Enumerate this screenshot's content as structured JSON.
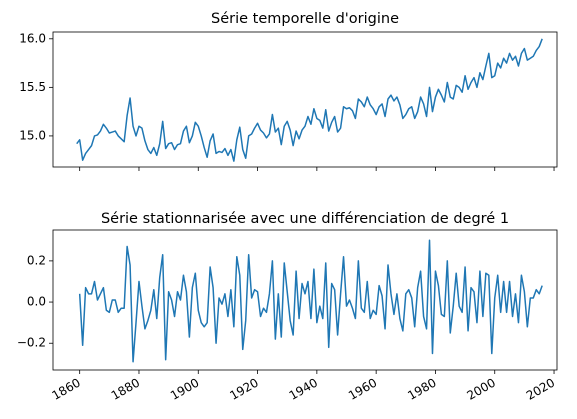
{
  "chart_data": [
    {
      "type": "line",
      "title": "Série temporelle d'origine",
      "x": [
        1859,
        1860,
        1861,
        1862,
        1863,
        1864,
        1865,
        1866,
        1867,
        1868,
        1869,
        1870,
        1871,
        1872,
        1873,
        1874,
        1875,
        1876,
        1877,
        1878,
        1879,
        1880,
        1881,
        1882,
        1883,
        1884,
        1885,
        1886,
        1887,
        1888,
        1889,
        1890,
        1891,
        1892,
        1893,
        1894,
        1895,
        1896,
        1897,
        1898,
        1899,
        1900,
        1901,
        1902,
        1903,
        1904,
        1905,
        1906,
        1907,
        1908,
        1909,
        1910,
        1911,
        1912,
        1913,
        1914,
        1915,
        1916,
        1917,
        1918,
        1919,
        1920,
        1921,
        1922,
        1923,
        1924,
        1925,
        1926,
        1927,
        1928,
        1929,
        1930,
        1931,
        1932,
        1933,
        1934,
        1935,
        1936,
        1937,
        1938,
        1939,
        1940,
        1941,
        1942,
        1943,
        1944,
        1945,
        1946,
        1947,
        1948,
        1949,
        1950,
        1951,
        1952,
        1953,
        1954,
        1955,
        1956,
        1957,
        1958,
        1959,
        1960,
        1961,
        1962,
        1963,
        1964,
        1965,
        1966,
        1967,
        1968,
        1969,
        1970,
        1971,
        1972,
        1973,
        1974,
        1975,
        1976,
        1977,
        1978,
        1979,
        1980,
        1981,
        1982,
        1983,
        1984,
        1985,
        1986,
        1987,
        1988,
        1989,
        1990,
        1991,
        1992,
        1993,
        1994,
        1995,
        1996,
        1997,
        1998,
        1999,
        2000,
        2001,
        2002,
        2003,
        2004,
        2005,
        2006,
        2007,
        2008,
        2009,
        2010,
        2011,
        2012,
        2013,
        2014,
        2015,
        2016
      ],
      "values": [
        14.92,
        14.96,
        14.75,
        14.82,
        14.86,
        14.9,
        15.0,
        15.01,
        15.05,
        15.12,
        15.08,
        15.03,
        15.04,
        15.05,
        15.0,
        14.97,
        14.94,
        15.21,
        15.39,
        15.1,
        15.0,
        15.1,
        15.08,
        14.95,
        14.86,
        14.82,
        14.88,
        14.8,
        14.92,
        15.15,
        14.87,
        14.92,
        14.93,
        14.86,
        14.91,
        14.92,
        15.05,
        15.1,
        14.93,
        15.0,
        15.14,
        15.1,
        15.0,
        14.88,
        14.78,
        14.95,
        15.02,
        14.82,
        14.84,
        14.83,
        14.87,
        14.8,
        14.86,
        14.74,
        14.96,
        15.09,
        14.86,
        14.77,
        15.0,
        15.02,
        15.08,
        15.13,
        15.06,
        15.03,
        14.98,
        15.02,
        15.22,
        15.04,
        15.08,
        14.91,
        15.1,
        15.15,
        15.06,
        14.9,
        15.05,
        14.97,
        15.06,
        15.1,
        15.2,
        15.12,
        15.28,
        15.18,
        15.16,
        15.08,
        15.27,
        15.05,
        15.14,
        15.2,
        15.04,
        15.08,
        15.3,
        15.28,
        15.29,
        15.26,
        15.18,
        15.38,
        15.35,
        15.3,
        15.4,
        15.32,
        15.28,
        15.22,
        15.3,
        15.33,
        15.2,
        15.38,
        15.42,
        15.36,
        15.4,
        15.32,
        15.18,
        15.22,
        15.28,
        15.3,
        15.18,
        15.25,
        15.4,
        15.33,
        15.2,
        15.5,
        15.25,
        15.4,
        15.48,
        15.42,
        15.35,
        15.55,
        15.4,
        15.38,
        15.52,
        15.5,
        15.45,
        15.62,
        15.48,
        15.55,
        15.6,
        15.5,
        15.65,
        15.58,
        15.72,
        15.85,
        15.6,
        15.62,
        15.75,
        15.7,
        15.8,
        15.75,
        15.85,
        15.78,
        15.82,
        15.72,
        15.85,
        15.9,
        15.78,
        15.8,
        15.82,
        15.88,
        15.92,
        16.0
      ],
      "color": "#1f77b4",
      "xlim": [
        1851,
        2021
      ],
      "xticks": [
        1860,
        1880,
        1900,
        1920,
        1940,
        1960,
        1980,
        2000,
        2020
      ],
      "ylim": [
        14.68,
        16.07
      ],
      "yticks": [
        {
          "value": 15,
          "label": "15.0"
        },
        15.5,
        {
          "value": 16,
          "label": "16.0"
        }
      ]
    },
    {
      "type": "line",
      "title": "Série stationnarisée avec une différenciation de degré 1",
      "x": [
        1860,
        1861,
        1862,
        1863,
        1864,
        1865,
        1866,
        1867,
        1868,
        1869,
        1870,
        1871,
        1872,
        1873,
        1874,
        1875,
        1876,
        1877,
        1878,
        1879,
        1880,
        1881,
        1882,
        1883,
        1884,
        1885,
        1886,
        1887,
        1888,
        1889,
        1890,
        1891,
        1892,
        1893,
        1894,
        1895,
        1896,
        1897,
        1898,
        1899,
        1900,
        1901,
        1902,
        1903,
        1904,
        1905,
        1906,
        1907,
        1908,
        1909,
        1910,
        1911,
        1912,
        1913,
        1914,
        1915,
        1916,
        1917,
        1918,
        1919,
        1920,
        1921,
        1922,
        1923,
        1924,
        1925,
        1926,
        1927,
        1928,
        1929,
        1930,
        1931,
        1932,
        1933,
        1934,
        1935,
        1936,
        1937,
        1938,
        1939,
        1940,
        1941,
        1942,
        1943,
        1944,
        1945,
        1946,
        1947,
        1948,
        1949,
        1950,
        1951,
        1952,
        1953,
        1954,
        1955,
        1956,
        1957,
        1958,
        1959,
        1960,
        1961,
        1962,
        1963,
        1964,
        1965,
        1966,
        1967,
        1968,
        1969,
        1970,
        1971,
        1972,
        1973,
        1974,
        1975,
        1976,
        1977,
        1978,
        1979,
        1980,
        1981,
        1982,
        1983,
        1984,
        1985,
        1986,
        1987,
        1988,
        1989,
        1990,
        1991,
        1992,
        1993,
        1994,
        1995,
        1996,
        1997,
        1998,
        1999,
        2000,
        2001,
        2002,
        2003,
        2004,
        2005,
        2006,
        2007,
        2008,
        2009,
        2010,
        2011,
        2012,
        2013,
        2014,
        2015,
        2016
      ],
      "values": [
        0.04,
        -0.21,
        0.07,
        0.04,
        0.04,
        0.1,
        0.01,
        0.04,
        0.07,
        -0.04,
        -0.05,
        0.01,
        0.01,
        -0.05,
        -0.03,
        -0.03,
        0.27,
        0.18,
        -0.29,
        -0.1,
        0.1,
        -0.02,
        -0.13,
        -0.09,
        -0.04,
        0.06,
        -0.08,
        0.12,
        0.23,
        -0.28,
        0.05,
        0.01,
        -0.07,
        0.05,
        0.01,
        0.13,
        0.05,
        -0.17,
        0.07,
        0.14,
        -0.04,
        -0.1,
        -0.12,
        -0.1,
        0.17,
        0.07,
        -0.2,
        0.02,
        -0.01,
        0.04,
        -0.07,
        0.06,
        -0.12,
        0.22,
        0.13,
        -0.23,
        -0.09,
        0.23,
        0.02,
        0.06,
        0.05,
        -0.07,
        -0.03,
        -0.05,
        0.04,
        0.2,
        -0.18,
        0.04,
        -0.17,
        0.19,
        0.05,
        -0.09,
        -0.16,
        0.15,
        -0.08,
        0.09,
        0.04,
        0.1,
        -0.08,
        0.16,
        -0.1,
        -0.02,
        -0.08,
        0.19,
        -0.22,
        0.09,
        0.06,
        -0.16,
        0.04,
        0.22,
        -0.02,
        0.01,
        -0.03,
        -0.08,
        0.2,
        -0.03,
        -0.05,
        0.1,
        -0.08,
        -0.04,
        -0.06,
        0.08,
        0.03,
        -0.13,
        0.18,
        0.04,
        -0.06,
        0.04,
        -0.08,
        -0.14,
        0.04,
        0.06,
        0.02,
        -0.12,
        0.07,
        0.15,
        -0.07,
        -0.13,
        0.3,
        -0.25,
        0.15,
        0.08,
        -0.06,
        -0.07,
        0.2,
        -0.15,
        -0.02,
        0.14,
        -0.02,
        -0.05,
        0.17,
        -0.14,
        0.07,
        0.05,
        -0.1,
        0.15,
        -0.07,
        0.14,
        0.13,
        -0.25,
        0.02,
        0.13,
        -0.05,
        0.1,
        -0.05,
        0.1,
        -0.07,
        0.04,
        -0.1,
        0.13,
        0.05,
        -0.12,
        0.02,
        0.02,
        0.06,
        0.04,
        0.08
      ],
      "color": "#1f77b4",
      "xlim": [
        1851,
        2021
      ],
      "xticks": [
        1860,
        1880,
        1900,
        1920,
        1940,
        1960,
        1980,
        2000,
        2020
      ],
      "ylim": [
        -0.33,
        0.35
      ],
      "yticks": [
        {
          "value": -0.2,
          "label": "−0.2"
        },
        {
          "value": 0,
          "label": "0.0"
        },
        0.2
      ]
    }
  ]
}
